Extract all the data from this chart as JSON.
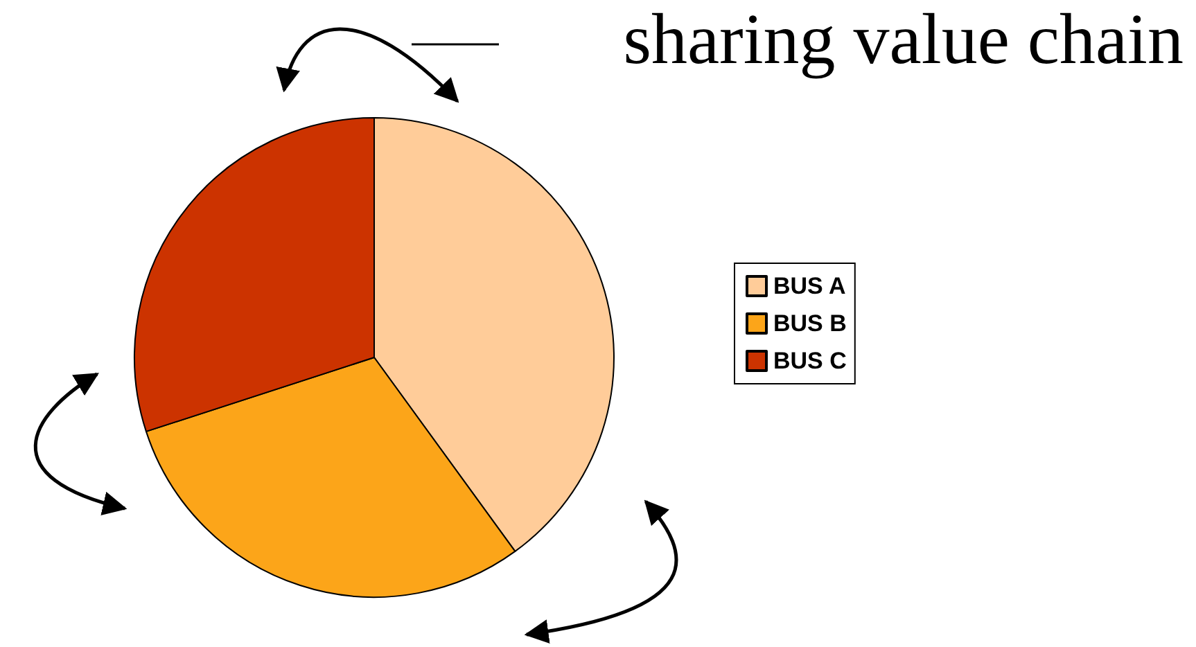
{
  "chart_data": {
    "type": "pie",
    "title": "sharing value chain",
    "categories": [
      "BUS A",
      "BUS B",
      "BUS C"
    ],
    "values": [
      40,
      30,
      30
    ],
    "colors": [
      "#ffcc99",
      "#fca519",
      "#cc3300"
    ],
    "legend": "right"
  }
}
